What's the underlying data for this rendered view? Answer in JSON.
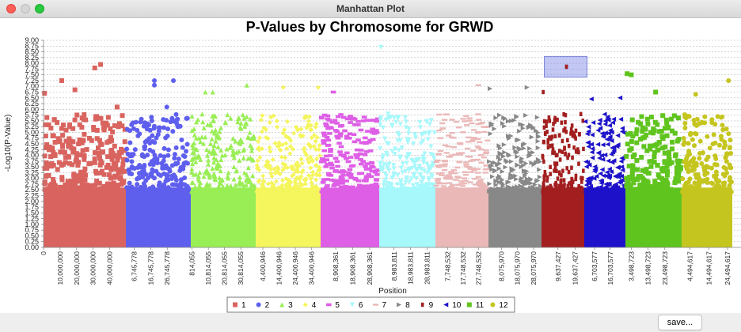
{
  "window": {
    "title": "Manhattan Plot"
  },
  "save_label": "save...",
  "chart_data": {
    "type": "scatter",
    "title": "P-Values by Chromosome for GRWD",
    "xlabel": "Position",
    "ylabel": "-Log10(P-Value)",
    "ylim": [
      0,
      9.0
    ],
    "y_ticks": [
      "0.00",
      "0.25",
      "0.50",
      "0.75",
      "1.00",
      "1.25",
      "1.50",
      "1.75",
      "2.00",
      "2.25",
      "2.50",
      "2.75",
      "3.00",
      "3.25",
      "3.50",
      "3.75",
      "4.00",
      "4.25",
      "4.50",
      "4.75",
      "5.00",
      "5.25",
      "5.50",
      "5.75",
      "6.00",
      "6.25",
      "6.50",
      "6.75",
      "7.00",
      "7.25",
      "7.50",
      "7.75",
      "8.00",
      "8.25",
      "8.50",
      "8.75",
      "9.00"
    ],
    "grid": true,
    "legend_position": "bottom",
    "highlight": {
      "series": "9",
      "x": 14600000,
      "y": 7.85,
      "y_range": [
        7.4,
        8.3
      ]
    },
    "series": [
      {
        "name": "1",
        "marker": "square",
        "color": "#d9645f",
        "x_range": [
          0,
          49800000
        ],
        "x_ticks": [
          {
            "label": "0",
            "x": 0
          },
          {
            "label": "10,000,000",
            "x": 10000000
          },
          {
            "label": "20,000,000",
            "x": 20000000
          },
          {
            "label": "30,000,000",
            "x": 30000000
          },
          {
            "label": "40,000,000",
            "x": 40000000
          }
        ],
        "top_points": [
          {
            "x": 600000,
            "y": 6.7
          },
          {
            "x": 11000000,
            "y": 7.25
          },
          {
            "x": 19000000,
            "y": 6.85
          },
          {
            "x": 31000000,
            "y": 7.8
          },
          {
            "x": 34500000,
            "y": 7.95
          },
          {
            "x": 44500000,
            "y": 6.1
          }
        ]
      },
      {
        "name": "2",
        "marker": "circle",
        "color": "#5f5fee",
        "x_range": [
          1745778,
          41000000
        ],
        "x_ticks": [
          {
            "label": "6,745,778",
            "x": 6745778
          },
          {
            "label": "16,745,778",
            "x": 16745778
          },
          {
            "label": "26,745,778",
            "x": 26745778
          }
        ],
        "top_points": [
          {
            "x": 19000000,
            "y": 7.25
          },
          {
            "x": 19000000,
            "y": 7.05
          },
          {
            "x": 30500000,
            "y": 7.25
          },
          {
            "x": 26500000,
            "y": 6.1
          }
        ]
      },
      {
        "name": "3",
        "marker": "triangle-up",
        "color": "#99ee55",
        "x_range": [
          0,
          40000000
        ],
        "x_ticks": [
          {
            "label": "814,055",
            "x": 814055
          },
          {
            "label": "10,814,055",
            "x": 10814055
          },
          {
            "label": "20,814,055",
            "x": 20814055
          },
          {
            "label": "30,814,055",
            "x": 30814055
          }
        ],
        "top_points": [
          {
            "x": 9000000,
            "y": 6.75
          },
          {
            "x": 13500000,
            "y": 6.75
          },
          {
            "x": 34500000,
            "y": 7.05
          }
        ]
      },
      {
        "name": "4",
        "marker": "diamond",
        "color": "#f5f55d",
        "x_range": [
          0,
          40000000
        ],
        "x_ticks": [
          {
            "label": "4,400,946",
            "x": 4400946
          },
          {
            "label": "14,400,946",
            "x": 14400946
          },
          {
            "label": "24,400,946",
            "x": 24400946
          },
          {
            "label": "34,400,946",
            "x": 34400946
          }
        ],
        "top_points": [
          {
            "x": 17000000,
            "y": 6.95
          },
          {
            "x": 38500000,
            "y": 6.95
          }
        ]
      },
      {
        "name": "5",
        "marker": "rectangle",
        "color": "#de5ee6",
        "x_range": [
          0,
          34500000
        ],
        "x_ticks": [
          {
            "label": "8,908,361",
            "x": 8908361
          },
          {
            "label": "18,908,361",
            "x": 18908361
          },
          {
            "label": "28,908,361",
            "x": 28908361
          }
        ],
        "top_points": [
          {
            "x": 7500000,
            "y": 6.75
          }
        ]
      },
      {
        "name": "6",
        "marker": "triangle-down",
        "color": "#a6f8fb",
        "x_range": [
          0,
          34000000
        ],
        "x_ticks": [
          {
            "label": "8,983,811",
            "x": 8983811
          },
          {
            "label": "18,983,811",
            "x": 18983811
          },
          {
            "label": "28,983,811",
            "x": 28983811
          }
        ],
        "top_points": [
          {
            "x": 1000000,
            "y": 8.7
          }
        ]
      },
      {
        "name": "7",
        "marker": "bar",
        "color": "#ebb8b8",
        "x_range": [
          0,
          34000000
        ],
        "x_ticks": [
          {
            "label": "7,748,532",
            "x": 7748532
          },
          {
            "label": "17,748,532",
            "x": 17748532
          },
          {
            "label": "27,748,532",
            "x": 27748532
          }
        ],
        "top_points": [
          {
            "x": 27500000,
            "y": 7.05
          }
        ]
      },
      {
        "name": "8",
        "marker": "triangle-right",
        "color": "#888888",
        "x_range": [
          0,
          33000000
        ],
        "x_ticks": [
          {
            "label": "8,075,970",
            "x": 8075970
          },
          {
            "label": "18,075,970",
            "x": 18075970
          },
          {
            "label": "28,075,970",
            "x": 28075970
          }
        ],
        "top_points": [
          {
            "x": 1000000,
            "y": 6.9
          },
          {
            "x": 24000000,
            "y": 6.95
          }
        ]
      },
      {
        "name": "9",
        "marker": "small-rect",
        "color": "#a31f1f",
        "x_range": [
          0,
          25000000
        ],
        "x_ticks": [
          {
            "label": "9,637,427",
            "x": 9637427
          },
          {
            "label": "19,637,427",
            "x": 19637427
          }
        ],
        "top_points": [
          {
            "x": 14600000,
            "y": 7.85
          },
          {
            "x": 1000000,
            "y": 6.75
          }
        ]
      },
      {
        "name": "10",
        "marker": "triangle-left",
        "color": "#1d12c9",
        "x_range": [
          0,
          26500000
        ],
        "x_ticks": [
          {
            "label": "6,703,577",
            "x": 6703577
          },
          {
            "label": "16,703,577",
            "x": 16703577
          }
        ],
        "top_points": [
          {
            "x": 4500000,
            "y": 6.45
          },
          {
            "x": 23000000,
            "y": 6.5
          }
        ]
      },
      {
        "name": "11",
        "marker": "square",
        "color": "#60c41f",
        "x_range": [
          0,
          33500000
        ],
        "x_ticks": [
          {
            "label": "3,498,723",
            "x": 3498723
          },
          {
            "label": "13,498,723",
            "x": 13498723
          },
          {
            "label": "23,498,723",
            "x": 23498723
          }
        ],
        "top_points": [
          {
            "x": 1000000,
            "y": 7.55
          },
          {
            "x": 3500000,
            "y": 7.5
          },
          {
            "x": 18000000,
            "y": 6.75
          }
        ]
      },
      {
        "name": "12",
        "marker": "circle",
        "color": "#c5c51f",
        "x_range": [
          0,
          27000000
        ],
        "x_ticks": [
          {
            "label": "4,494,617",
            "x": 4494617
          },
          {
            "label": "14,494,617",
            "x": 14494617
          },
          {
            "label": "24,494,617",
            "x": 24494617
          }
        ],
        "top_points": [
          {
            "x": 7500000,
            "y": 6.65
          },
          {
            "x": 25000000,
            "y": 7.25
          }
        ]
      }
    ]
  }
}
